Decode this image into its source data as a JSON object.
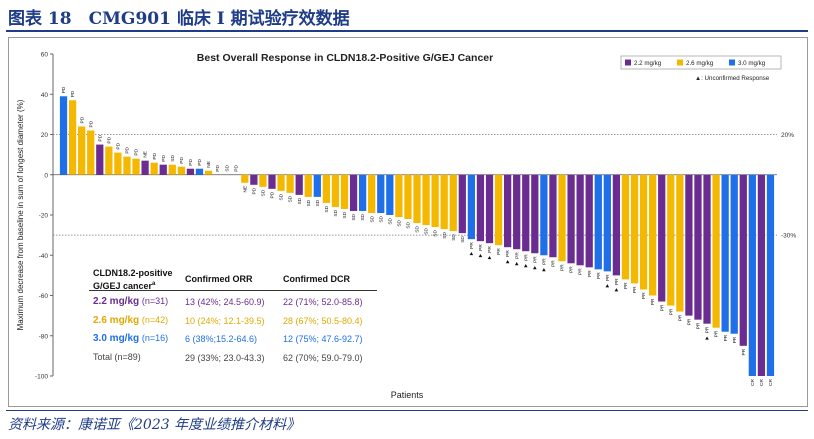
{
  "header": {
    "title": "图表 18　CMG901 临床 I 期试验疗效数据"
  },
  "footer": {
    "source": "资料来源：康诺亚《2023 年度业绩推介材料》"
  },
  "chart_data": {
    "type": "bar",
    "title": "Best Overall Response in CLDN18.2-Positive G/GEJ Cancer",
    "xlabel": "Patients",
    "ylabel": "Maximum decrease from baseline in sum of longest diameter (%)",
    "ylim": [
      -100,
      60
    ],
    "yticks": [
      -100,
      -80,
      -60,
      -40,
      -20,
      0,
      20,
      40,
      60
    ],
    "reference_lines": [
      {
        "value": 20,
        "label": "20%"
      },
      {
        "value": -30,
        "label": "-30%"
      }
    ],
    "legend": {
      "placement": "top-right",
      "entries": [
        {
          "key": "2.2",
          "label": "2.2 mg/kg",
          "color": "#6a2c91"
        },
        {
          "key": "2.6",
          "label": "2.6 mg/kg",
          "color": "#f5b800"
        },
        {
          "key": "3.0",
          "label": "3.0 mg/kg",
          "color": "#1f6fe8"
        }
      ],
      "note": "▲: Unconfirmed Response"
    },
    "patients": [
      {
        "dose": "3.0",
        "value": 39,
        "response": "PD"
      },
      {
        "dose": "2.6",
        "value": 37,
        "response": "PD"
      },
      {
        "dose": "2.6",
        "value": 24,
        "response": "PD"
      },
      {
        "dose": "2.6",
        "value": 22,
        "response": "PD"
      },
      {
        "dose": "2.2",
        "value": 15,
        "response": "PD"
      },
      {
        "dose": "2.6",
        "value": 14,
        "response": "PD"
      },
      {
        "dose": "2.6",
        "value": 11,
        "response": "PD"
      },
      {
        "dose": "2.6",
        "value": 9,
        "response": "PD"
      },
      {
        "dose": "2.6",
        "value": 8,
        "response": "PD"
      },
      {
        "dose": "2.2",
        "value": 7,
        "response": "NE"
      },
      {
        "dose": "2.6",
        "value": 6,
        "response": "PD"
      },
      {
        "dose": "2.2",
        "value": 5,
        "response": "PD"
      },
      {
        "dose": "2.6",
        "value": 5,
        "response": "SD"
      },
      {
        "dose": "2.6",
        "value": 4,
        "response": "PD"
      },
      {
        "dose": "2.2",
        "value": 3,
        "response": "PD"
      },
      {
        "dose": "3.0",
        "value": 3,
        "response": "PD"
      },
      {
        "dose": "2.6",
        "value": 2,
        "response": "NE"
      },
      {
        "dose": "2.6",
        "value": 0,
        "response": "PD"
      },
      {
        "dose": "2.6",
        "value": 0,
        "response": "SD"
      },
      {
        "dose": "2.6",
        "value": 0,
        "response": "PD"
      },
      {
        "dose": "2.6",
        "value": -4,
        "response": "NE"
      },
      {
        "dose": "2.2",
        "value": -5,
        "response": "PD"
      },
      {
        "dose": "2.6",
        "value": -6,
        "response": "SD"
      },
      {
        "dose": "2.2",
        "value": -7,
        "response": "PD"
      },
      {
        "dose": "2.6",
        "value": -8,
        "response": "SD"
      },
      {
        "dose": "2.6",
        "value": -9,
        "response": "SD"
      },
      {
        "dose": "2.2",
        "value": -10,
        "response": "SD"
      },
      {
        "dose": "2.6",
        "value": -11,
        "response": "SD"
      },
      {
        "dose": "3.0",
        "value": -11,
        "response": "SD"
      },
      {
        "dose": "2.6",
        "value": -14,
        "response": "SD"
      },
      {
        "dose": "2.6",
        "value": -16,
        "response": "SD"
      },
      {
        "dose": "2.6",
        "value": -17,
        "response": "SD"
      },
      {
        "dose": "2.2",
        "value": -18,
        "response": "SD"
      },
      {
        "dose": "3.0",
        "value": -18,
        "response": "SD"
      },
      {
        "dose": "2.6",
        "value": -19,
        "response": "SD"
      },
      {
        "dose": "3.0",
        "value": -19,
        "response": "SD"
      },
      {
        "dose": "3.0",
        "value": -20,
        "response": "SD"
      },
      {
        "dose": "2.6",
        "value": -21,
        "response": "SD"
      },
      {
        "dose": "2.6",
        "value": -22,
        "response": "SD"
      },
      {
        "dose": "2.6",
        "value": -24,
        "response": "SD"
      },
      {
        "dose": "2.6",
        "value": -25,
        "response": "SD"
      },
      {
        "dose": "2.6",
        "value": -26,
        "response": "SD"
      },
      {
        "dose": "2.6",
        "value": -27,
        "response": "SD"
      },
      {
        "dose": "2.6",
        "value": -28,
        "response": "SD"
      },
      {
        "dose": "2.2",
        "value": -29,
        "response": "SD"
      },
      {
        "dose": "3.0",
        "value": -32,
        "response": "PR",
        "unconfirmed": true
      },
      {
        "dose": "2.2",
        "value": -33,
        "response": "PR",
        "unconfirmed": true
      },
      {
        "dose": "2.2",
        "value": -34,
        "response": "PR",
        "unconfirmed": true
      },
      {
        "dose": "2.6",
        "value": -35,
        "response": "PR"
      },
      {
        "dose": "2.2",
        "value": -36,
        "response": "PR",
        "unconfirmed": true
      },
      {
        "dose": "2.2",
        "value": -37,
        "response": "PR",
        "unconfirmed": true
      },
      {
        "dose": "2.2",
        "value": -38,
        "response": "PR",
        "unconfirmed": true
      },
      {
        "dose": "2.2",
        "value": -39,
        "response": "PR",
        "unconfirmed": true
      },
      {
        "dose": "3.0",
        "value": -40,
        "response": "PR",
        "unconfirmed": true
      },
      {
        "dose": "2.2",
        "value": -41,
        "response": "PR"
      },
      {
        "dose": "2.6",
        "value": -43,
        "response": "PR"
      },
      {
        "dose": "2.2",
        "value": -44,
        "response": "PR"
      },
      {
        "dose": "2.2",
        "value": -45,
        "response": "PR"
      },
      {
        "dose": "2.2",
        "value": -46,
        "response": "PR"
      },
      {
        "dose": "3.0",
        "value": -47,
        "response": "PR"
      },
      {
        "dose": "3.0",
        "value": -48,
        "response": "PR",
        "unconfirmed": true
      },
      {
        "dose": "2.2",
        "value": -50,
        "response": "PR",
        "unconfirmed": true
      },
      {
        "dose": "2.6",
        "value": -52,
        "response": "PR"
      },
      {
        "dose": "2.6",
        "value": -54,
        "response": "PR"
      },
      {
        "dose": "2.6",
        "value": -57,
        "response": "PR"
      },
      {
        "dose": "2.6",
        "value": -60,
        "response": "PR"
      },
      {
        "dose": "2.2",
        "value": -63,
        "response": "PR"
      },
      {
        "dose": "2.6",
        "value": -65,
        "response": "PR"
      },
      {
        "dose": "2.6",
        "value": -68,
        "response": "PR"
      },
      {
        "dose": "2.2",
        "value": -70,
        "response": "PR"
      },
      {
        "dose": "2.2",
        "value": -72,
        "response": "PR"
      },
      {
        "dose": "2.2",
        "value": -74,
        "response": "PR",
        "unconfirmed": true
      },
      {
        "dose": "2.6",
        "value": -76,
        "response": "PR"
      },
      {
        "dose": "3.0",
        "value": -78,
        "response": "PR"
      },
      {
        "dose": "3.0",
        "value": -79,
        "response": "PR"
      },
      {
        "dose": "2.2",
        "value": -85,
        "response": "PR"
      },
      {
        "dose": "3.0",
        "value": -100,
        "response": "CR"
      },
      {
        "dose": "2.2",
        "value": -100,
        "response": "CR"
      },
      {
        "dose": "3.0",
        "value": -100,
        "response": "CR"
      }
    ],
    "table": {
      "headers": [
        "CLDN18.2-positive G/GEJ cancer",
        "Confirmed ORR",
        "Confirmed DCR"
      ],
      "header_superscript": "a",
      "rows": [
        {
          "group": "2.2 mg/kg",
          "n": "(n=31)",
          "orr": "13 (42%; 24.5-60.9)",
          "dcr": "22 (71%; 52.0-85.8)",
          "color": "#6a2c91"
        },
        {
          "group": "2.6 mg/kg",
          "n": "(n=42)",
          "orr": "10 (24%; 12.1-39.5)",
          "dcr": "28 (67%; 50.5-80.4)",
          "color": "#e0a800"
        },
        {
          "group": "3.0 mg/kg",
          "n": "(n=16)",
          "orr": "6 (38%;15.2-64.6)",
          "dcr": "12 (75%; 47.6-92.7)",
          "color": "#1f6fe8"
        },
        {
          "group": "Total",
          "n": "(n=89)",
          "orr": "29 (33%; 23.0-43.3)",
          "dcr": "62 (70%; 59.0-79.0)",
          "color": "#444444"
        }
      ]
    }
  }
}
